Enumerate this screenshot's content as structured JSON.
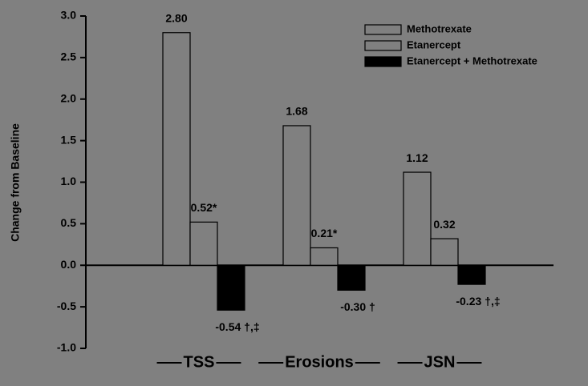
{
  "chart_data": {
    "type": "bar",
    "y_label": "Change from Baseline",
    "categories": [
      "TSS",
      "Erosions",
      "JSN"
    ],
    "series": [
      {
        "name": "Methotrexate",
        "color": "#808080",
        "values": [
          2.8,
          1.68,
          1.12
        ],
        "value_labels": [
          "2.80",
          "1.68",
          "1.12"
        ]
      },
      {
        "name": "Etanercept",
        "color": "#808080",
        "values": [
          0.52,
          0.21,
          0.32
        ],
        "value_labels": [
          "0.52*",
          "0.21*",
          "0.32"
        ]
      },
      {
        "name": "Etanercept + Methotrexate",
        "color": "#000000",
        "values": [
          -0.54,
          -0.3,
          -0.23
        ],
        "value_labels": [
          "-0.54 †,‡",
          "-0.30 †",
          "-0.23 †,‡"
        ]
      }
    ],
    "ylim": [
      -1.0,
      3.0
    ],
    "yticks": [
      {
        "value": -1.0,
        "label": "-1.0"
      },
      -0.5,
      {
        "value": 0.0,
        "label": "0.0"
      },
      0.5,
      {
        "value": 1.0,
        "label": "1.0"
      },
      1.5,
      {
        "value": 2.0,
        "label": "2.0"
      },
      2.5,
      {
        "value": 3.0,
        "label": "3.0"
      }
    ]
  }
}
